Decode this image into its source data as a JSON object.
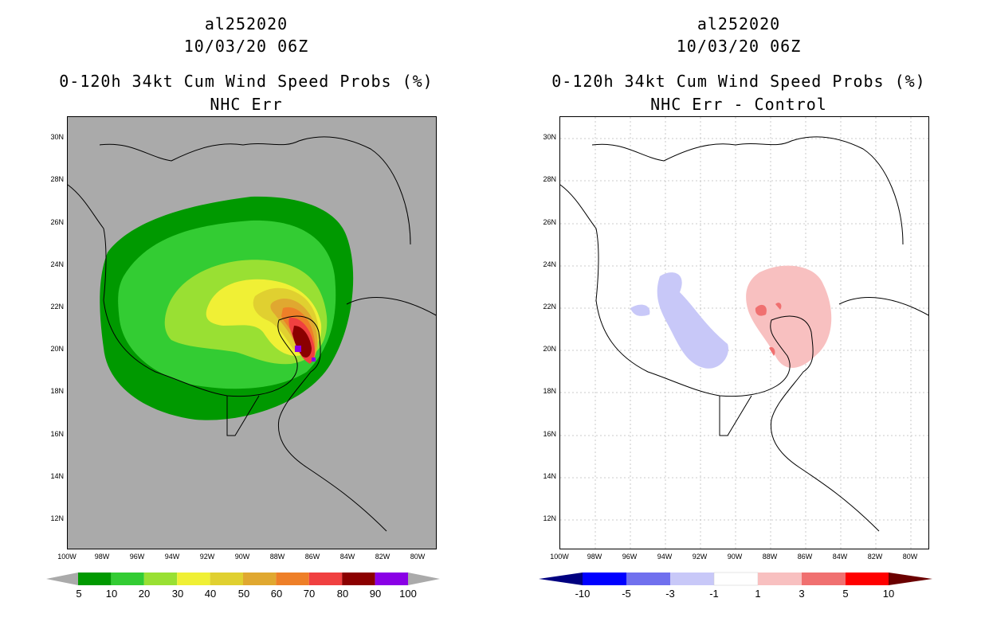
{
  "panels": [
    {
      "title_storm": "al252020",
      "title_date": "10/03/20 06Z",
      "title_product": "0-120h 34kt Cum Wind Speed Probs (%)",
      "title_subtitle": "NHC Err",
      "background": "#aaaaaa",
      "colorbar_labels": [
        "5",
        "10",
        "20",
        "30",
        "40",
        "50",
        "60",
        "70",
        "80",
        "90",
        "100"
      ],
      "colorbar_colors": [
        "#009900",
        "#33cc33",
        "#99e033",
        "#f0f035",
        "#e0d030",
        "#e0a830",
        "#ee7f28",
        "#f04040",
        "#8b0000",
        "#8a00e6"
      ]
    },
    {
      "title_storm": "al252020",
      "title_date": "10/03/20 06Z",
      "title_product": "0-120h 34kt Cum Wind Speed Probs (%)",
      "title_subtitle": "NHC Err - Control",
      "background": "#ffffff",
      "colorbar_labels": [
        "-10",
        "-5",
        "-3",
        "-1",
        "1",
        "3",
        "5",
        "10"
      ],
      "colorbar_colors": [
        "#0000cc",
        "#0000ff",
        "#7070ee",
        "#c8c8f8",
        "#ffffff",
        "#f8c0c0",
        "#f07070",
        "#ff0000",
        "#8b0000"
      ]
    }
  ],
  "axes": {
    "lat_ticks": [
      "30N",
      "28N",
      "26N",
      "24N",
      "22N",
      "20N",
      "18N",
      "16N",
      "14N",
      "12N"
    ],
    "lon_ticks": [
      "100W",
      "98W",
      "96W",
      "94W",
      "92W",
      "90W",
      "88W",
      "86W",
      "84W",
      "82W",
      "80W"
    ]
  },
  "map_data": {
    "storm": "al252020",
    "product": "34kt cumulative wind speed probability",
    "lat_range": [
      10.6,
      31
    ],
    "lon_range": [
      -100,
      -79
    ]
  }
}
